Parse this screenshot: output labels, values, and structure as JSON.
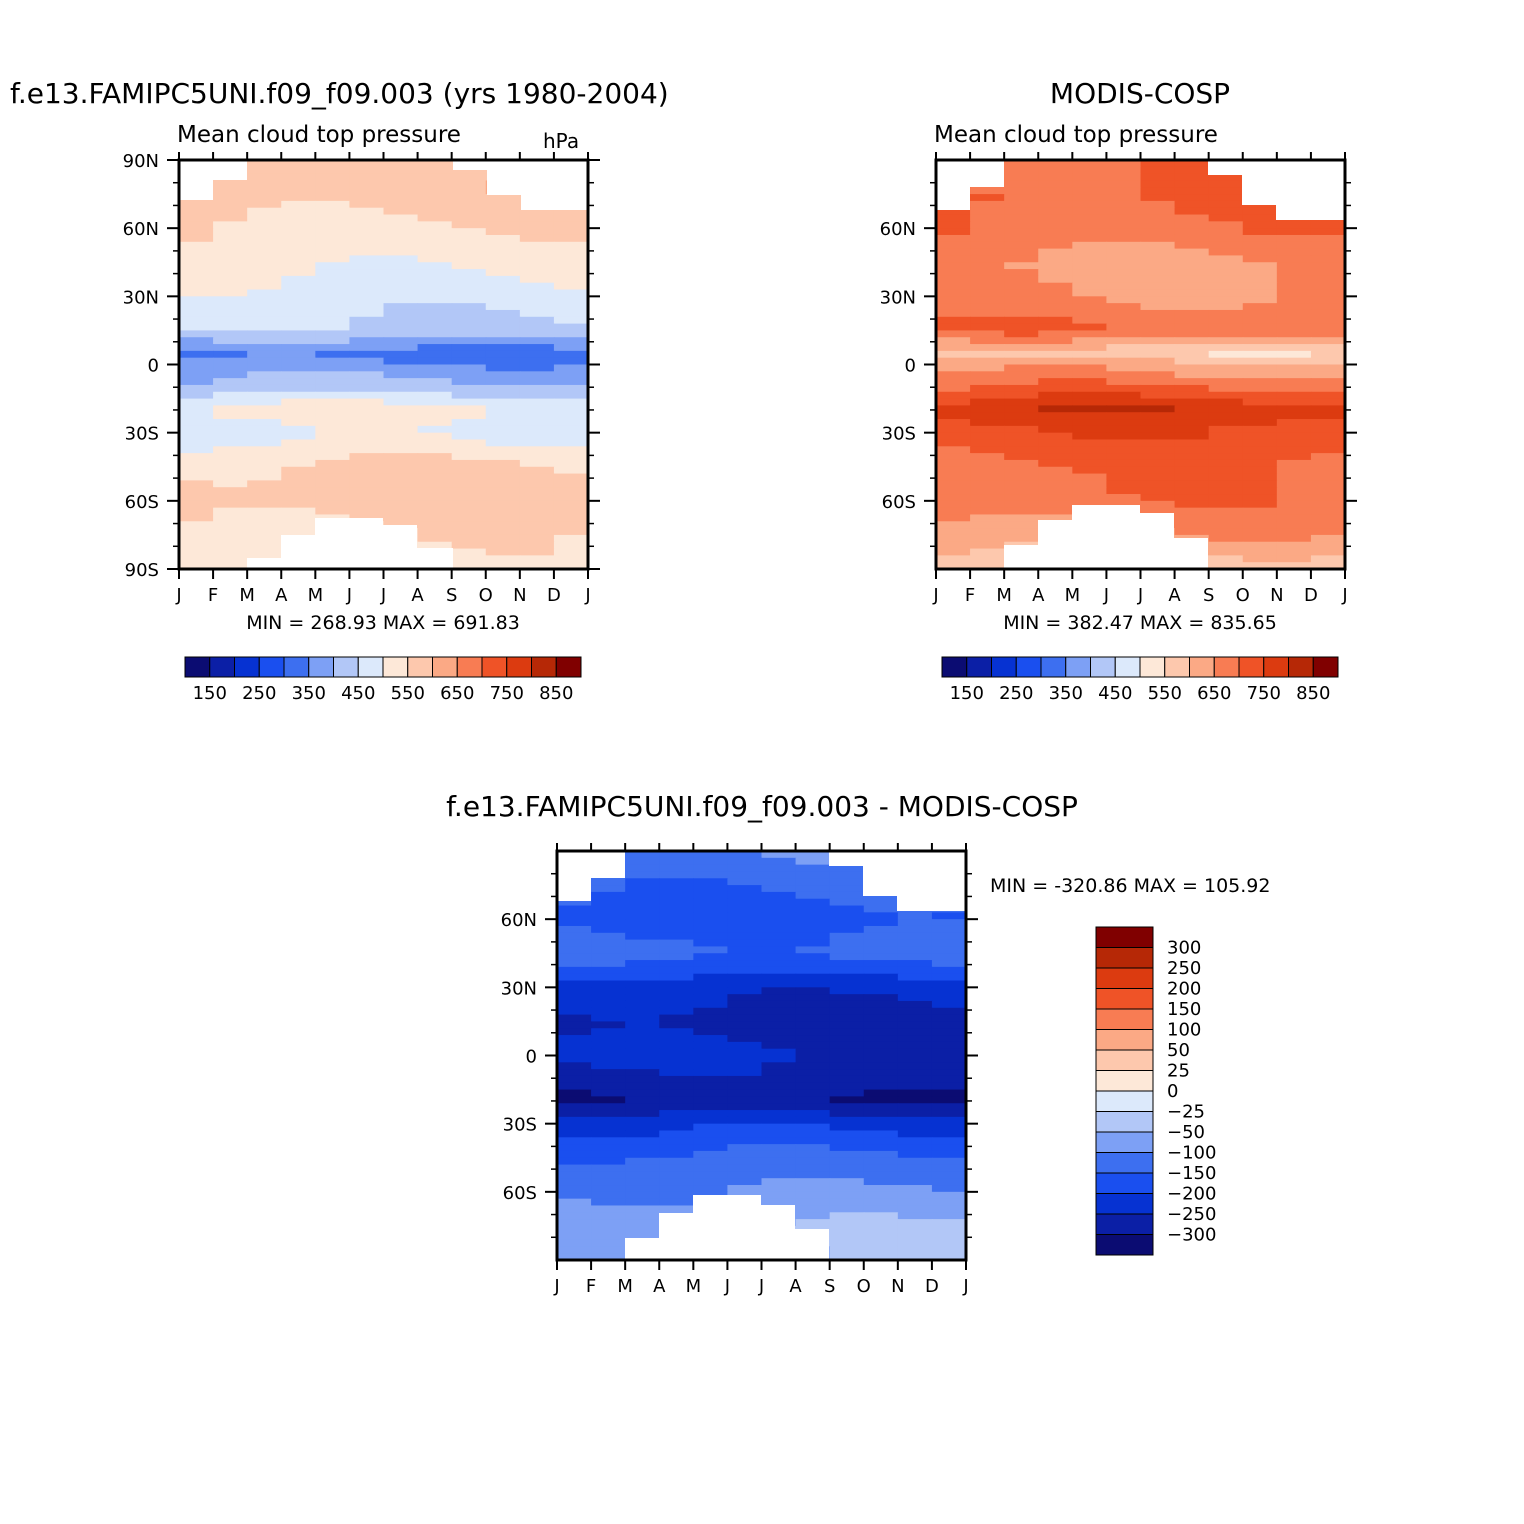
{
  "chart_data": [
    {
      "type": "heatmap",
      "id": "model",
      "title": "f.e13.FAMIPC5UNI.f09_f09.003 (yrs 1980-2004)",
      "subtitle": "Mean cloud top pressure",
      "units": "hPa",
      "x_categories": [
        "J",
        "F",
        "M",
        "A",
        "M",
        "J",
        "J",
        "A",
        "S",
        "O",
        "N",
        "D",
        "J"
      ],
      "y_tick_labels": [
        "90N",
        "60N",
        "30N",
        "0",
        "30S",
        "60S",
        "90S"
      ],
      "ylim": [
        -90,
        90
      ],
      "min_max_text": "MIN = 268.93 MAX = 691.83",
      "colorbar_levels": [
        150,
        200,
        250,
        300,
        350,
        400,
        450,
        500,
        550,
        600,
        650,
        700,
        750,
        800,
        850
      ],
      "colorbar_labels": [
        "150",
        "250",
        "350",
        "450",
        "550",
        "650",
        "750",
        "850"
      ],
      "latitude_profile": [
        [
          90,
          575
        ],
        [
          75,
          580
        ],
        [
          60,
          540
        ],
        [
          45,
          515
        ],
        [
          30,
          480
        ],
        [
          15,
          440
        ],
        [
          5,
          330
        ],
        [
          0,
          360
        ],
        [
          -10,
          420
        ],
        [
          -20,
          520
        ],
        [
          -30,
          480
        ],
        [
          -45,
          560
        ],
        [
          -60,
          580
        ],
        [
          -75,
          540
        ],
        [
          -90,
          520
        ]
      ]
    },
    {
      "type": "heatmap",
      "id": "obs",
      "title": "MODIS-COSP",
      "subtitle": "Mean cloud top pressure",
      "x_categories": [
        "J",
        "F",
        "M",
        "A",
        "M",
        "J",
        "J",
        "A",
        "S",
        "O",
        "N",
        "D",
        "J"
      ],
      "y_tick_labels": [
        "60N",
        "30N",
        "0",
        "30S",
        "60S"
      ],
      "ylim": [
        -90,
        90
      ],
      "min_max_text": "MIN = 382.47 MAX = 835.65",
      "colorbar_levels": [
        150,
        200,
        250,
        300,
        350,
        400,
        450,
        500,
        550,
        600,
        650,
        700,
        750,
        800,
        850
      ],
      "colorbar_labels": [
        "150",
        "250",
        "350",
        "450",
        "550",
        "650",
        "750",
        "850"
      ],
      "latitude_profile": [
        [
          90,
          700
        ],
        [
          75,
          710
        ],
        [
          60,
          690
        ],
        [
          45,
          640
        ],
        [
          30,
          650
        ],
        [
          15,
          700
        ],
        [
          5,
          560
        ],
        [
          0,
          620
        ],
        [
          -10,
          700
        ],
        [
          -20,
          790
        ],
        [
          -30,
          740
        ],
        [
          -45,
          700
        ],
        [
          -60,
          690
        ],
        [
          -75,
          640
        ],
        [
          -90,
          560
        ]
      ]
    },
    {
      "type": "heatmap",
      "id": "diff",
      "title": "f.e13.FAMIPC5UNI.f09_f09.003 - MODIS-COSP",
      "x_categories": [
        "J",
        "F",
        "M",
        "A",
        "M",
        "J",
        "J",
        "A",
        "S",
        "O",
        "N",
        "D",
        "J"
      ],
      "y_tick_labels": [
        "60N",
        "30N",
        "0",
        "30S",
        "60S"
      ],
      "ylim": [
        -90,
        90
      ],
      "min_max_text": "MIN = -320.86 MAX = 105.92",
      "colorbar_levels": [
        -300,
        -250,
        -200,
        -150,
        -100,
        -50,
        -25,
        0,
        25,
        50,
        100,
        150,
        200,
        250,
        300
      ],
      "colorbar_labels": [
        "300",
        "250",
        "200",
        "150",
        "100",
        "50",
        "25",
        "0",
        "−25",
        "−50",
        "−100",
        "−150",
        "−200",
        "−250",
        "−300"
      ],
      "latitude_profile": [
        [
          90,
          -100
        ],
        [
          75,
          -140
        ],
        [
          60,
          -170
        ],
        [
          45,
          -130
        ],
        [
          30,
          -230
        ],
        [
          15,
          -270
        ],
        [
          5,
          -250
        ],
        [
          0,
          -240
        ],
        [
          -10,
          -270
        ],
        [
          -20,
          -300
        ],
        [
          -30,
          -220
        ],
        [
          -45,
          -140
        ],
        [
          -60,
          -100
        ],
        [
          -75,
          -50
        ],
        [
          -90,
          -60
        ]
      ]
    }
  ],
  "palette": {
    "main": [
      "#0b0c72",
      "#0b1fa6",
      "#0632d2",
      "#1a4fef",
      "#3d6ff0",
      "#7da0f5",
      "#b2c7f7",
      "#dce9fb",
      "#fde8d8",
      "#fdc8ad",
      "#fba985",
      "#f87c53",
      "#ef5327",
      "#dc3b10",
      "#b62806",
      "#800000"
    ],
    "diff": [
      "#0b0c72",
      "#0b1fa6",
      "#0632d2",
      "#1a4fef",
      "#3d6ff0",
      "#7da0f5",
      "#b2c7f7",
      "#dce9fb",
      "#fde8d8",
      "#fdc8ad",
      "#fba985",
      "#f87c53",
      "#ef5327",
      "#dc3b10",
      "#b62806",
      "#800000"
    ]
  }
}
